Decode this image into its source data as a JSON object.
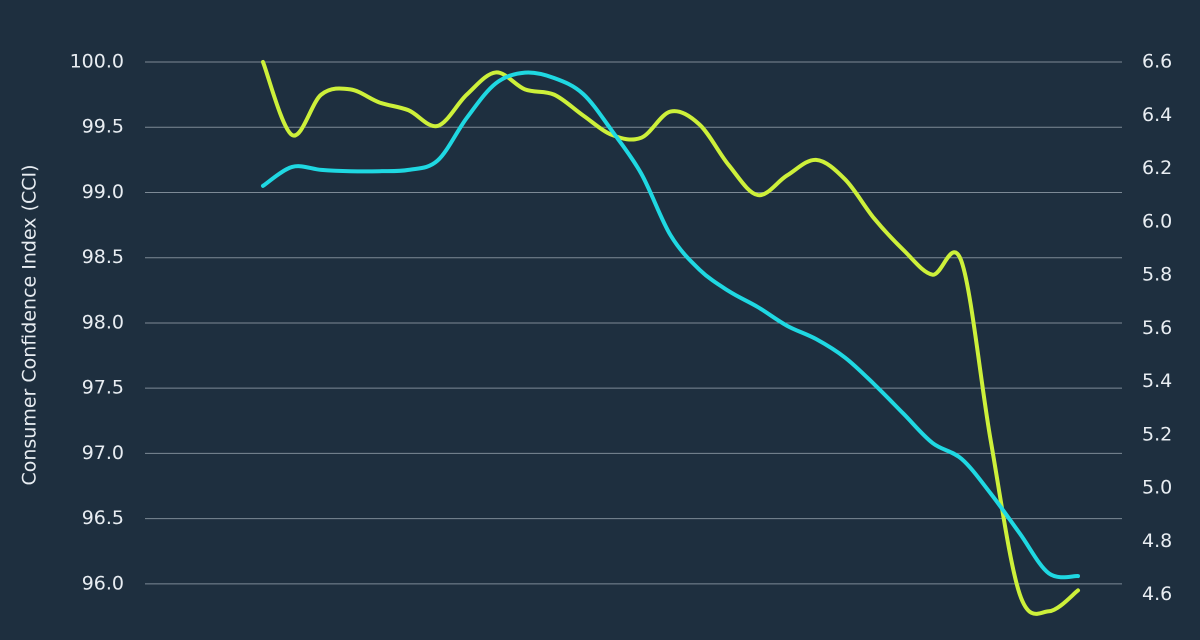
{
  "chart_data": {
    "type": "line",
    "ylabel": "Consumer Confidence Index (CCI)",
    "categories": [
      null,
      null,
      null,
      null,
      null,
      null,
      null,
      null,
      null,
      null,
      null,
      null,
      null,
      null,
      null,
      null,
      null,
      null,
      null,
      null,
      null,
      null,
      null,
      null,
      null,
      null,
      null,
      null,
      null
    ],
    "series": [
      {
        "color": "#cdf03a",
        "values": [
          100.0,
          99.44,
          99.75,
          99.79,
          99.69,
          99.63,
          99.51,
          99.75,
          99.92,
          99.79,
          99.75,
          99.59,
          99.44,
          99.42,
          99.62,
          99.52,
          99.21,
          98.98,
          99.13,
          99.25,
          99.1,
          98.8,
          98.56,
          98.37,
          98.47,
          97.1,
          95.92,
          95.79,
          95.95
        ]
      },
      {
        "color": "#1fd8e2",
        "axis": "y2",
        "values": [
          6.135,
          6.206,
          6.195,
          6.19,
          6.19,
          6.195,
          6.23,
          6.39,
          6.52,
          6.56,
          6.54,
          6.48,
          6.34,
          6.18,
          5.95,
          5.82,
          5.74,
          5.68,
          5.61,
          5.56,
          5.49,
          5.39,
          5.28,
          5.17,
          5.11,
          4.98,
          4.83,
          4.68,
          4.67
        ]
      }
    ],
    "ylim": [
      95.57,
      100.0
    ],
    "yticks": [
      {
        "value": 100,
        "label": "100.0"
      },
      99.5,
      {
        "value": 99,
        "label": "99.0"
      },
      98.5,
      {
        "value": 98,
        "label": "98.0"
      },
      97.5,
      {
        "value": 97,
        "label": "97.0"
      },
      96.5,
      {
        "value": 96,
        "label": "96.0"
      }
    ],
    "y2lim": [
      4.43,
      6.6
    ],
    "y2ticks": [
      6.6,
      6.4,
      6.2,
      {
        "value": 6,
        "label": "6.0"
      },
      5.8,
      5.6,
      5.4,
      5.2,
      {
        "value": 5,
        "label": "5.0"
      },
      4.8,
      4.6
    ],
    "grid": true
  }
}
